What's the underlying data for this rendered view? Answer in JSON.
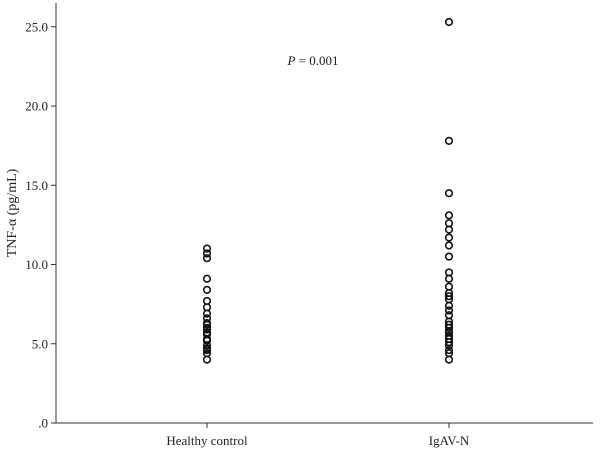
{
  "chart_data": {
    "type": "scatter",
    "title": "",
    "xlabel": "",
    "ylabel": "TNF-α (pg/mL)",
    "ylim": [
      0,
      26.5
    ],
    "yticks": [
      0,
      5,
      10,
      15,
      20,
      25
    ],
    "ytick_labels": [
      ".0",
      "5.0",
      "10.0",
      "15.0",
      "20.0",
      "25.0"
    ],
    "categories": [
      "Healthy control",
      "IgAV-N"
    ],
    "grid": false,
    "annotation": {
      "prefix": "P",
      "text": " = 0.001",
      "position": "top-center"
    },
    "marker_color": "#111111",
    "series": [
      {
        "category": "Healthy control",
        "values": [
          11.0,
          10.7,
          10.4,
          9.1,
          8.4,
          7.7,
          7.3,
          6.9,
          6.6,
          6.3,
          6.2,
          6.0,
          5.9,
          5.7,
          5.6,
          5.3,
          5.2,
          4.9,
          4.7,
          4.6,
          4.4,
          4.0
        ]
      },
      {
        "category": "IgAV-N",
        "values": [
          25.3,
          17.8,
          14.5,
          13.1,
          12.6,
          12.2,
          11.7,
          11.2,
          10.5,
          9.5,
          9.1,
          8.6,
          8.2,
          8.0,
          7.8,
          7.4,
          7.1,
          6.8,
          6.4,
          6.2,
          6.0,
          5.8,
          5.7,
          5.5,
          5.3,
          5.1,
          4.9,
          4.6,
          4.4,
          4.0
        ]
      }
    ]
  }
}
